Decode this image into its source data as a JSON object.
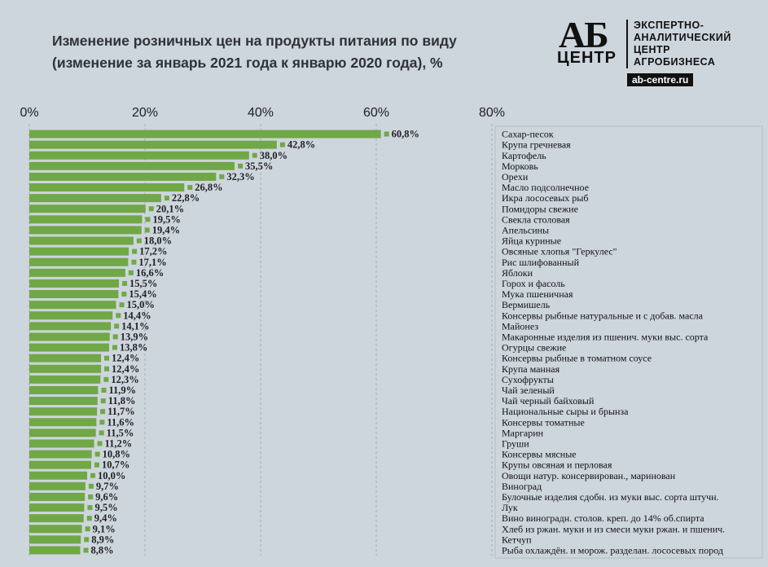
{
  "header": {
    "title_line1": "Изменение розничных цен на продукты питания по виду",
    "title_line2": "(изменение за январь 2021 года к январю 2020 года), %"
  },
  "logo": {
    "ab": "АБ",
    "centr": "ЦЕНТР",
    "line1": "ЭКСПЕРТНО-",
    "line2": "АНАЛИТИЧЕСКИЙ",
    "line3": "ЦЕНТР",
    "line4": "АГРОБИЗНЕСА",
    "url": "ab-centre.ru"
  },
  "colors": {
    "bar": "#70a845",
    "background": "#cdd5dd",
    "grid": "#a6adb4"
  },
  "chart_data": {
    "type": "bar",
    "orientation": "horizontal",
    "title": "Изменение розничных цен на продукты питания по виду (изменение за январь 2021 года к январю 2020 года), %",
    "xlim": [
      0,
      80
    ],
    "xticks": [
      "0%",
      "20%",
      "40%",
      "60%",
      "80%"
    ],
    "grid": true,
    "legend": "right",
    "categories": [
      "Сахар-песок",
      "Крупа гречневая",
      "Картофель",
      "Морковь",
      "Орехи",
      "Масло подсолнечное",
      "Икра лососевых рыб",
      "Помидоры свежие",
      "Свекла столовая",
      "Апельсины",
      "Яйца куриные",
      "Овсяные хлопья \"Геркулес\"",
      "Рис шлифованный",
      "Яблоки",
      "Горох и фасоль",
      "Мука пшеничная",
      "Вермишель",
      "Консервы рыбные натуральные и с добав. масла",
      "Майонез",
      "Макаронные изделия из пшенич. муки выс. сорта",
      "Огурцы свежие",
      "Консервы рыбные в томатном соусе",
      "Крупа манная",
      "Сухофрукты",
      "Чай зеленый",
      "Чай черный байховый",
      "Национальные сыры и брынза",
      "Консервы томатные",
      "Маргарин",
      "Груши",
      "Консервы мясные",
      "Крупы овсяная и перловая",
      "Овощи натур. консервирован., маринован",
      "Виноград",
      "Булочные изделия сдобн. из муки выс. сорта штучн.",
      "Лук",
      "Вино виноградн. столов. креп. до 14% об.спирта",
      "Хлеб из ржан. муки и из смеси муки ржан. и пшенич.",
      "Кетчуп",
      "Рыба охлаждён. и морож. разделан. лососевых пород"
    ],
    "values": [
      60.8,
      42.8,
      38.0,
      35.5,
      32.3,
      26.8,
      22.8,
      20.1,
      19.5,
      19.4,
      18.0,
      17.2,
      17.1,
      16.6,
      15.5,
      15.4,
      15.0,
      14.4,
      14.1,
      13.9,
      13.8,
      12.4,
      12.4,
      12.3,
      11.9,
      11.8,
      11.7,
      11.6,
      11.5,
      11.2,
      10.8,
      10.7,
      10.0,
      9.7,
      9.6,
      9.5,
      9.4,
      9.1,
      8.9,
      8.8
    ],
    "labels": [
      "60,8%",
      "42,8%",
      "38,0%",
      "35,5%",
      "32,3%",
      "26,8%",
      "22,8%",
      "20,1%",
      "19,5%",
      "19,4%",
      "18,0%",
      "17,2%",
      "17,1%",
      "16,6%",
      "15,5%",
      "15,4%",
      "15,0%",
      "14,4%",
      "14,1%",
      "13,9%",
      "13,8%",
      "12,4%",
      "12,4%",
      "12,3%",
      "11,9%",
      "11,8%",
      "11,7%",
      "11,6%",
      "11,5%",
      "11,2%",
      "10,8%",
      "10,7%",
      "10,0%",
      "9,7%",
      "9,6%",
      "9,5%",
      "9,4%",
      "9,1%",
      "8,9%",
      "8,8%"
    ]
  }
}
